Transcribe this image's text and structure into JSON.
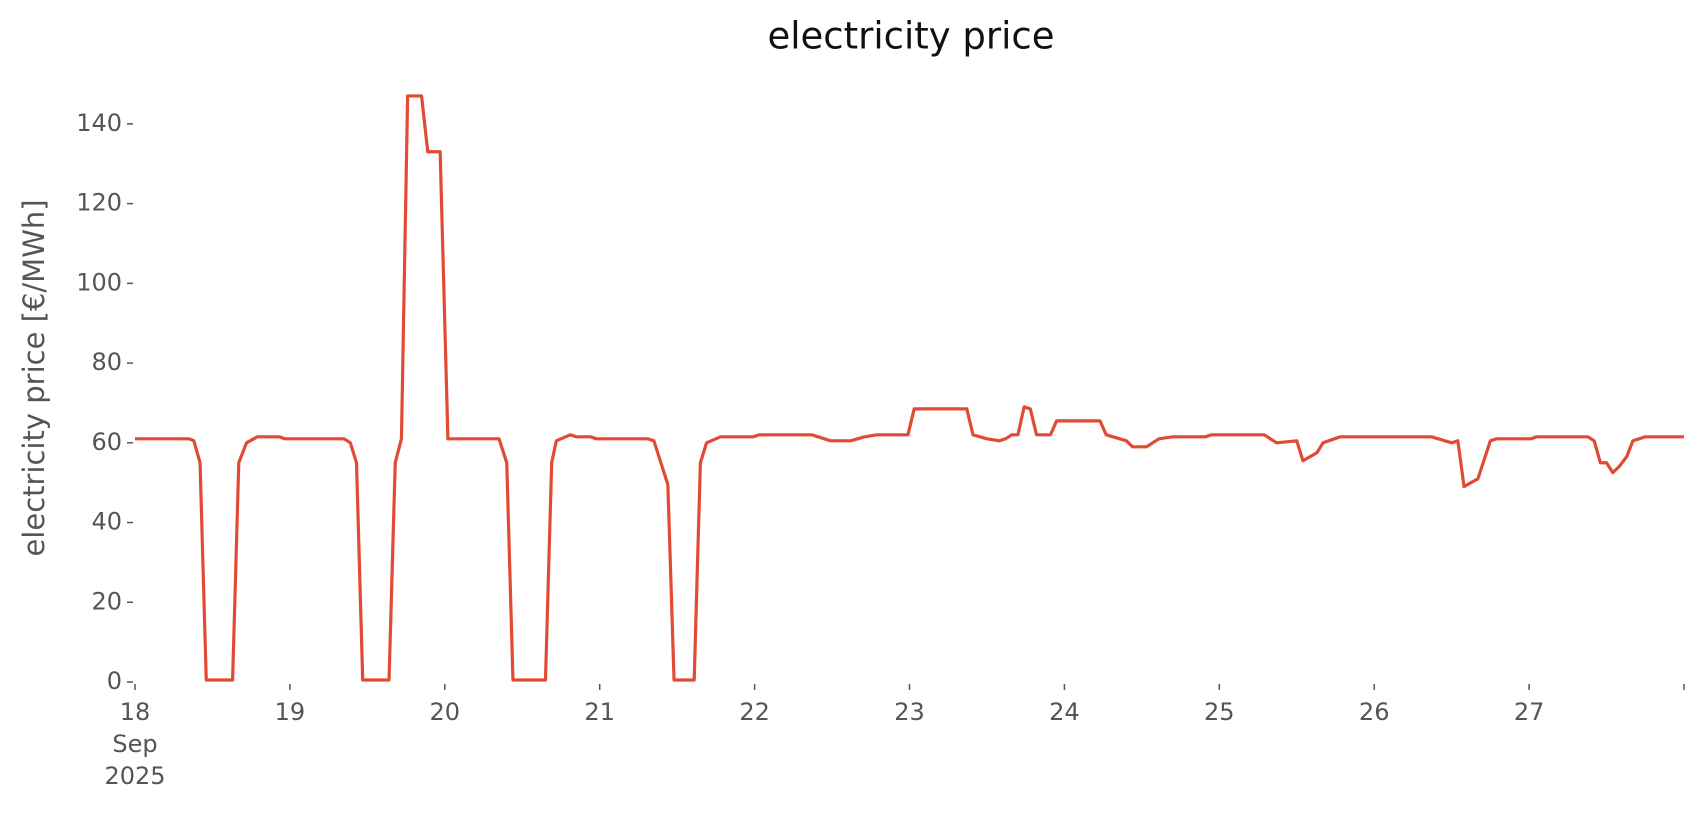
{
  "chart_data": {
    "type": "line",
    "title": "electricity price",
    "y_label": "electricity price [€/MWh]",
    "x_tick_sublabels": [
      "Sep",
      "2025"
    ],
    "xlim": [
      18,
      28
    ],
    "xticks": [
      18,
      19,
      20,
      21,
      22,
      23,
      24,
      25,
      26,
      27,
      {
        "value": 28,
        "label": null
      }
    ],
    "ylim": [
      0,
      150
    ],
    "yticks": [
      0,
      20,
      40,
      60,
      80,
      100,
      120,
      140
    ],
    "grid": false,
    "series": [
      {
        "name": "electricity price",
        "color": "#e24a33",
        "x": [
          18.0,
          18.35,
          18.38,
          18.42,
          18.46,
          18.63,
          18.67,
          18.72,
          18.79,
          18.93,
          18.97,
          19.35,
          19.39,
          19.43,
          19.47,
          19.64,
          19.68,
          19.72,
          19.76,
          19.85,
          19.89,
          19.97,
          20.02,
          20.35,
          20.4,
          20.44,
          20.65,
          20.69,
          20.72,
          20.81,
          20.85,
          20.94,
          20.98,
          21.31,
          21.35,
          21.44,
          21.48,
          21.61,
          21.65,
          21.69,
          21.78,
          21.99,
          22.03,
          22.37,
          22.45,
          22.49,
          22.62,
          22.71,
          22.79,
          22.99,
          23.03,
          23.37,
          23.41,
          23.5,
          23.58,
          23.62,
          23.66,
          23.7,
          23.74,
          23.78,
          23.82,
          23.91,
          23.95,
          24.23,
          24.27,
          24.4,
          24.44,
          24.53,
          24.61,
          24.7,
          24.91,
          24.95,
          25.29,
          25.33,
          25.37,
          25.5,
          25.54,
          25.63,
          25.67,
          25.78,
          26.37,
          26.5,
          26.54,
          26.58,
          26.67,
          26.75,
          26.79,
          27.01,
          27.05,
          27.38,
          27.42,
          27.46,
          27.5,
          27.54,
          27.58,
          27.63,
          27.67,
          27.75,
          28.0
        ],
        "values": [
          61,
          61,
          60.5,
          55,
          0.5,
          0.5,
          55,
          60,
          61.5,
          61.5,
          61,
          61,
          60,
          55,
          0.5,
          0.5,
          55,
          61,
          147,
          147,
          133,
          133,
          61,
          61,
          55,
          0.5,
          0.5,
          55,
          60.5,
          62,
          61.5,
          61.5,
          61,
          61,
          60.5,
          49.5,
          0.5,
          0.5,
          55,
          60,
          61.5,
          61.5,
          62,
          62,
          61,
          60.5,
          60.5,
          61.5,
          62,
          62,
          68.5,
          68.5,
          62,
          61,
          60.5,
          61,
          62,
          62,
          69,
          68.5,
          62,
          62,
          65.5,
          65.5,
          62,
          60.5,
          59,
          59,
          61,
          61.5,
          61.5,
          62,
          62,
          61,
          60,
          60.5,
          55.5,
          57.5,
          60,
          61.5,
          61.5,
          60,
          60.5,
          49,
          51,
          60.5,
          61,
          61,
          61.5,
          61.5,
          60.5,
          55,
          55,
          52.5,
          54,
          56.5,
          60.5,
          61.5,
          61.5
        ]
      }
    ]
  }
}
